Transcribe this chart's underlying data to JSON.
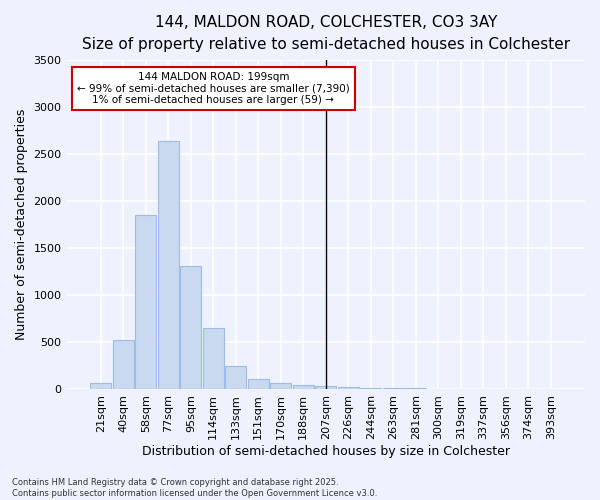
{
  "title_line1": "144, MALDON ROAD, COLCHESTER, CO3 3AY",
  "title_line2": "Size of property relative to semi-detached houses in Colchester",
  "xlabel": "Distribution of semi-detached houses by size in Colchester",
  "ylabel": "Number of semi-detached properties",
  "categories": [
    "21sqm",
    "40sqm",
    "58sqm",
    "77sqm",
    "95sqm",
    "114sqm",
    "133sqm",
    "151sqm",
    "170sqm",
    "188sqm",
    "207sqm",
    "226sqm",
    "244sqm",
    "263sqm",
    "281sqm",
    "300sqm",
    "319sqm",
    "337sqm",
    "356sqm",
    "374sqm",
    "393sqm"
  ],
  "values": [
    60,
    525,
    1850,
    2640,
    1310,
    645,
    245,
    105,
    65,
    45,
    35,
    20,
    15,
    10,
    5,
    3,
    2,
    1,
    1,
    0,
    0
  ],
  "bar_color": "#c8d9f0",
  "bar_edge_color": "#9dbde8",
  "annotation_line1": "144 MALDON ROAD: 199sqm",
  "annotation_line2": "← 99% of semi-detached houses are smaller (7,390)",
  "annotation_line3": "1% of semi-detached houses are larger (59) →",
  "annotation_box_color": "#cc0000",
  "vline_index": 10,
  "ylim": [
    0,
    3500
  ],
  "yticks": [
    0,
    500,
    1000,
    1500,
    2000,
    2500,
    3000,
    3500
  ],
  "footer_line1": "Contains HM Land Registry data © Crown copyright and database right 2025.",
  "footer_line2": "Contains public sector information licensed under the Open Government Licence v3.0.",
  "bg_color": "#eef2ff",
  "grid_color": "#ffffff",
  "title_fontsize": 11,
  "subtitle_fontsize": 9.5,
  "axis_label_fontsize": 9,
  "tick_fontsize": 8,
  "footer_fontsize": 6
}
